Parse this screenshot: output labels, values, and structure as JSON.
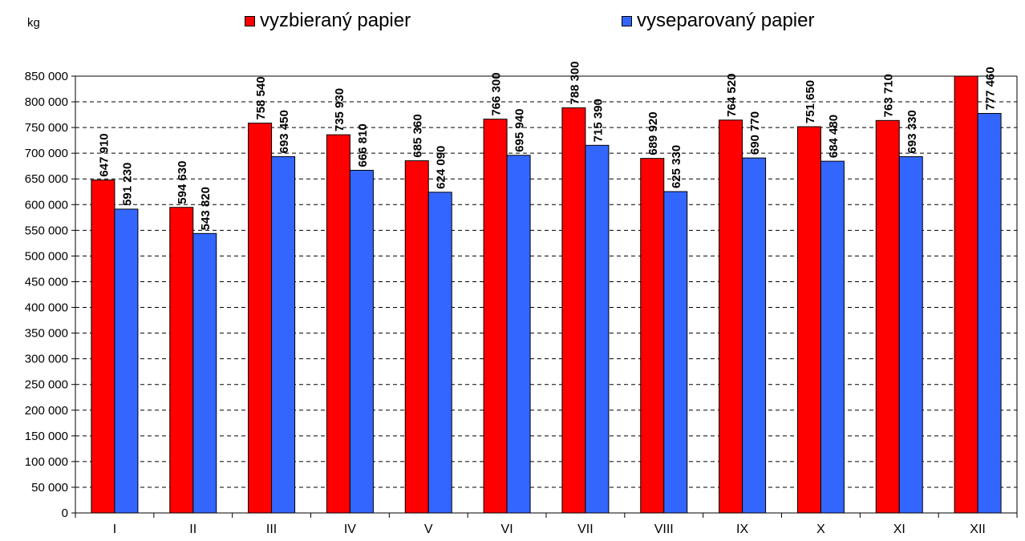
{
  "chart_data": {
    "type": "bar",
    "title": "",
    "unit_label": "kg",
    "xlabel": "",
    "ylabel": "kg",
    "categories": [
      "I",
      "II",
      "III",
      "IV",
      "V",
      "VI",
      "VII",
      "VIII",
      "IX",
      "X",
      "XI",
      "XII"
    ],
    "series": [
      {
        "name": "vyzbieraný papier",
        "color": "#ff0000",
        "values": [
          647910,
          594630,
          758540,
          735930,
          685360,
          766300,
          788300,
          689920,
          764520,
          751650,
          763710,
          854000
        ],
        "data_labels": [
          "647 910",
          "594 630",
          "758 540",
          "735 930",
          "685 360",
          "766 300",
          "788 300",
          "689 920",
          "764 520",
          "751 650",
          "763 710",
          ""
        ]
      },
      {
        "name": "vyseparovaný papier",
        "color": "#3366ff",
        "values": [
          591230,
          543820,
          693450,
          666810,
          624090,
          695940,
          715390,
          625330,
          690770,
          684480,
          693330,
          777460
        ],
        "data_labels": [
          "591 230",
          "543 820",
          "693 450",
          "666 810",
          "624 090",
          "695 940",
          "715 390",
          "625 330",
          "690 770",
          "684 480",
          "693 330",
          "777 460"
        ]
      }
    ],
    "ylim": [
      0,
      850000
    ],
    "yticks": [
      0,
      50000,
      100000,
      150000,
      200000,
      250000,
      300000,
      350000,
      400000,
      450000,
      500000,
      550000,
      600000,
      650000,
      700000,
      750000,
      800000,
      850000
    ],
    "ytick_labels": [
      "0",
      "50 000",
      "100 000",
      "150 000",
      "200 000",
      "250 000",
      "300 000",
      "350 000",
      "400 000",
      "450 000",
      "500 000",
      "550 000",
      "600 000",
      "650 000",
      "700 000",
      "750 000",
      "800 000",
      "850 000"
    ],
    "grid": true,
    "grid_style": "dashed",
    "legend_position": "top"
  }
}
